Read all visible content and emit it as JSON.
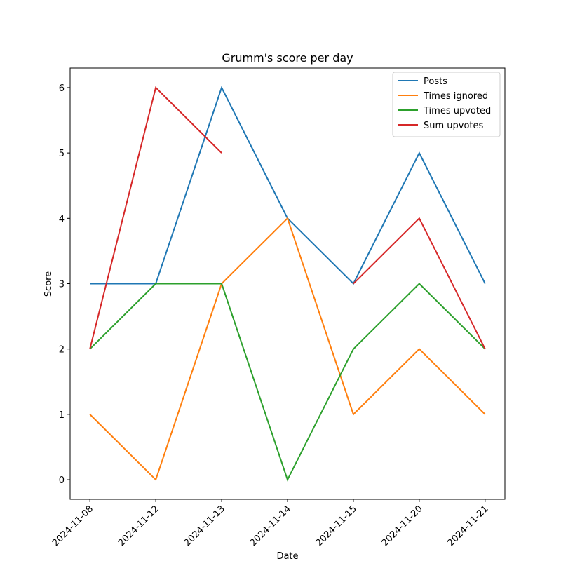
{
  "chart_data": {
    "type": "line",
    "title": "Grumm's score per day",
    "xlabel": "Date",
    "ylabel": "Score",
    "categories": [
      "2024-11-08",
      "2024-11-12",
      "2024-11-13",
      "2024-11-14",
      "2024-11-15",
      "2024-11-20",
      "2024-11-21"
    ],
    "series": [
      {
        "name": "Posts",
        "color": "#1f77b4",
        "values": [
          3,
          3,
          6,
          4,
          3,
          5,
          3
        ]
      },
      {
        "name": "Times ignored",
        "color": "#ff7f0e",
        "values": [
          1,
          0,
          3,
          4,
          1,
          2,
          1
        ]
      },
      {
        "name": "Times upvoted",
        "color": "#2ca02c",
        "values": [
          2,
          3,
          3,
          0,
          2,
          3,
          2
        ]
      },
      {
        "name": "Sum upvotes",
        "color": "#d62728",
        "values": [
          2,
          6,
          5,
          null,
          3,
          4,
          2
        ]
      }
    ],
    "ylim": [
      -0.3,
      6.3
    ],
    "yticks": [
      0,
      1,
      2,
      3,
      4,
      5,
      6
    ],
    "legend": "upper right",
    "grid": false
  }
}
